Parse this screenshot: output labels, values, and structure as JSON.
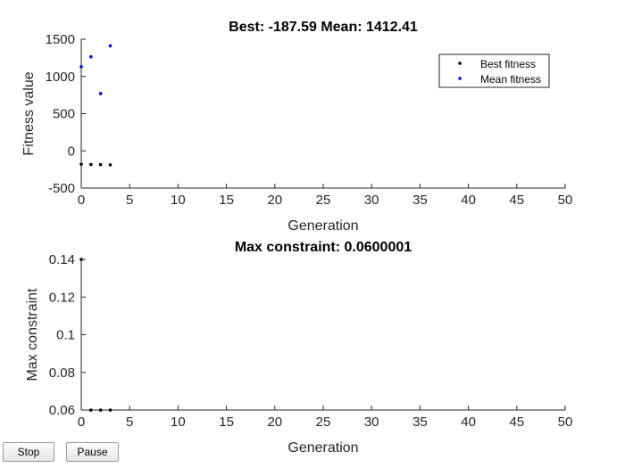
{
  "buttons": {
    "stop": "Stop",
    "pause": "Pause"
  },
  "chart_data": [
    {
      "type": "scatter",
      "title": "Best: -187.59 Mean: 1412.41",
      "xlabel": "Generation",
      "ylabel": "Fitness value",
      "xlim": [
        0,
        50
      ],
      "ylim": [
        -500,
        1500
      ],
      "xticks": [
        0,
        5,
        10,
        15,
        20,
        25,
        30,
        35,
        40,
        45,
        50
      ],
      "yticks": [
        -500,
        0,
        500,
        1000,
        1500
      ],
      "ytick_labels": [
        "-500",
        "0",
        "500",
        "1000",
        "1500"
      ],
      "legend_position": "top-right",
      "series": [
        {
          "name": "Best fitness",
          "color": "#000000",
          "points": [
            [
              0,
              -180
            ],
            [
              1,
              -183
            ],
            [
              2,
              -185
            ],
            [
              3,
              -187.59
            ]
          ]
        },
        {
          "name": "Mean fitness",
          "color": "#0000ff",
          "points": [
            [
              0,
              1130
            ],
            [
              1,
              1265
            ],
            [
              2,
              770
            ],
            [
              3,
              1412.41
            ]
          ]
        }
      ]
    },
    {
      "type": "scatter",
      "title": "Max constraint: 0.0600001",
      "xlabel": "Generation",
      "ylabel": "Max constraint",
      "xlim": [
        0,
        50
      ],
      "ylim": [
        0.06,
        0.14
      ],
      "xticks": [
        0,
        5,
        10,
        15,
        20,
        25,
        30,
        35,
        40,
        45,
        50
      ],
      "yticks": [
        0.06,
        0.08,
        0.1,
        0.12,
        0.14
      ],
      "ytick_labels": [
        "0.06",
        "0.08",
        "0.1",
        "0.12",
        "0.14"
      ],
      "series": [
        {
          "color": "#000000",
          "points": [
            [
              0,
              0.14
            ],
            [
              1,
              0.0600001
            ],
            [
              2,
              0.0600001
            ],
            [
              3,
              0.0600001
            ]
          ]
        }
      ]
    }
  ]
}
